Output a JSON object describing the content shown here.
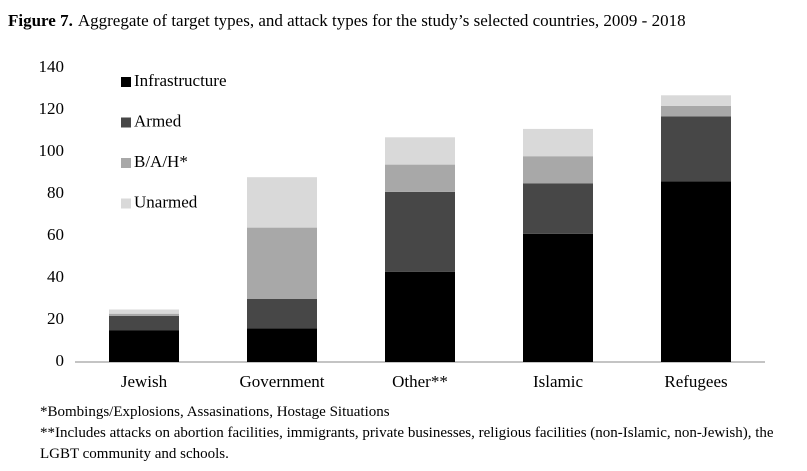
{
  "chart_data": {
    "type": "stacked_bar",
    "title_label": "Figure 7.",
    "title": "Aggregate of target types, and attack types for the study’s selected countries, 2009 - 2018",
    "categories": [
      "Jewish",
      "Government",
      "Other**",
      "Islamic",
      "Refugees"
    ],
    "series": [
      {
        "name": "Infrastructure",
        "color": "#000000",
        "values": [
          15,
          16,
          43,
          61,
          86
        ]
      },
      {
        "name": "Armed",
        "color": "#474747",
        "values": [
          7,
          14,
          38,
          24,
          31
        ]
      },
      {
        "name": "B/A/H*",
        "color": "#a8a8a8",
        "values": [
          1,
          34,
          13,
          13,
          5
        ]
      },
      {
        "name": "Unarmed",
        "color": "#d9d9d9",
        "values": [
          2,
          24,
          13,
          13,
          5
        ]
      }
    ],
    "ylim": [
      0,
      140
    ],
    "yticks": [
      0,
      20,
      40,
      60,
      80,
      100,
      120,
      140
    ],
    "grid": false,
    "legend": "upper-left",
    "footnotes": [
      "*Bombings/Explosions, Assasinations, Hostage Situations",
      "**Includes attacks on abortion facilities, immigrants, private businesses, religious facilities (non-Islamic, non-Jewish), the LGBT community and schools."
    ]
  }
}
